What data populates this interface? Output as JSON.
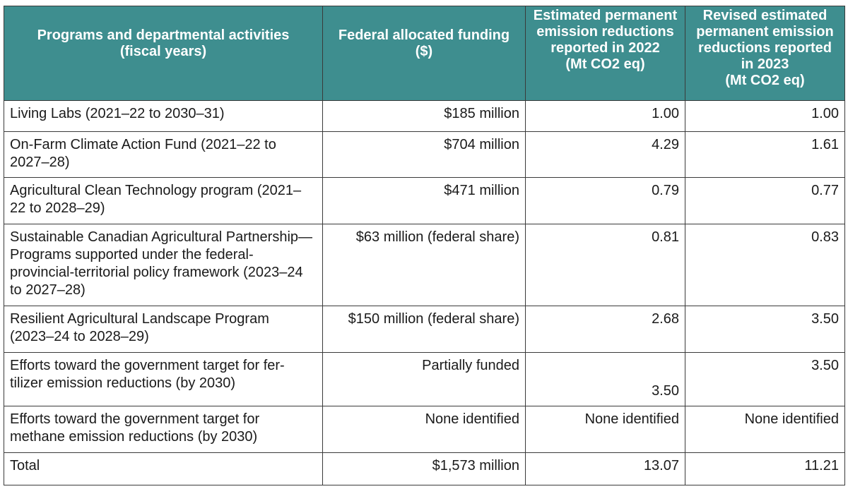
{
  "table": {
    "headers": [
      "Programs and departmental activities\n(fiscal years)",
      "Federal allocated funding\n($)",
      "Estimated permanent emission reductions reported in 2022\n(Mt CO2 eq)",
      "Revised estimated permanent emission reductions reported in 2023\n(Mt CO2 eq)"
    ],
    "rows": [
      {
        "program": "Living Labs (2021–22 to 2030–31)",
        "funding": "$185 million",
        "reductions_2022": "1.00",
        "reductions_2023": "1.00"
      },
      {
        "program": "On-Farm Climate Action Fund (2021–22 to 2027–28)",
        "funding": "$704 million",
        "reductions_2022": "4.29",
        "reductions_2023": "1.61"
      },
      {
        "program": "Agricultural Clean Technology program (2021–22 to 2028–29)",
        "funding": "$471 million",
        "reductions_2022": "0.79",
        "reductions_2023": "0.77"
      },
      {
        "program": "Sustainable Canadian Agricultural Partnership— Programs supported under the federal-provincial-territorial policy framework (2023–24 to 2027–28)",
        "funding": "$63 million (federal share)",
        "reductions_2022": "0.81",
        "reductions_2023": "0.83"
      },
      {
        "program": "Resilient Agricultural Landscape Program (2023–24 to 2028–29)",
        "funding": "$150 million (federal share)",
        "reductions_2022": "2.68",
        "reductions_2023": "3.50"
      },
      {
        "program": "Efforts toward the government target for fer-tilizer emission reductions (by 2030)",
        "funding": "Partially funded",
        "reductions_2022": "3.50",
        "reductions_2023": "3.50"
      },
      {
        "program": "Efforts toward the government target for methane emission reductions (by 2030)",
        "funding": "None identified",
        "reductions_2022": "None identified",
        "reductions_2023": "None identified"
      },
      {
        "program": "Total",
        "funding": "$1,573 million",
        "reductions_2022": "13.07",
        "reductions_2023": "11.21"
      }
    ]
  }
}
